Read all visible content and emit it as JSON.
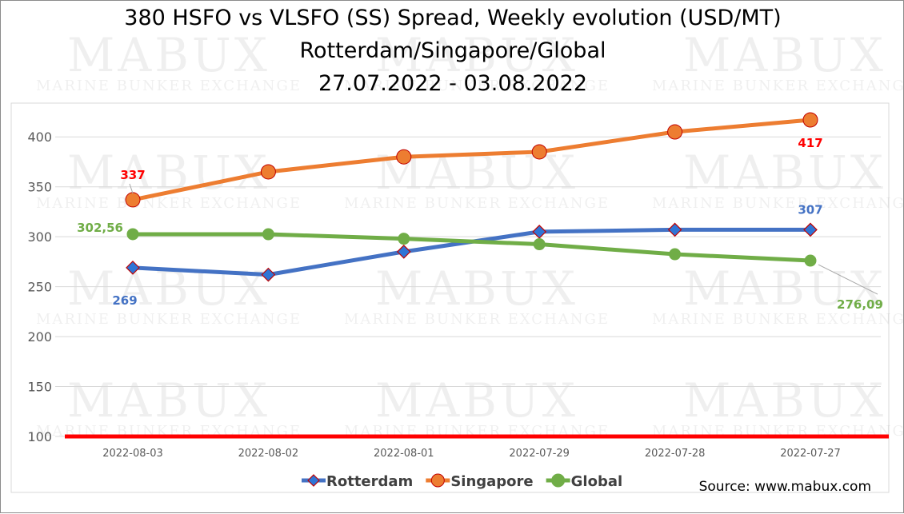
{
  "chart_data": {
    "type": "line",
    "title": [
      "380 HSFO vs VLSFO (SS) Spread, Weekly evolution (USD/MT)",
      "Rotterdam/Singapore/Global",
      "27.07.2022 - 03.08.2022"
    ],
    "categories": [
      "2022-08-03",
      "2022-08-02",
      "2022-08-01",
      "2022-07-29",
      "2022-07-28",
      "2022-07-27"
    ],
    "series": [
      {
        "name": "Rotterdam",
        "values": [
          269,
          262,
          285,
          305,
          307,
          307
        ],
        "color": "#4472c4",
        "marker": "diamond",
        "marker_fill": "#2e75d6",
        "marker_stroke": "#c00000"
      },
      {
        "name": "Singapore",
        "values": [
          337,
          365,
          380,
          385,
          405,
          417
        ],
        "color": "#ed7d31",
        "marker": "circle",
        "marker_fill": "#ed7d31",
        "marker_stroke": "#c00000"
      },
      {
        "name": "Global",
        "values": [
          302.56,
          302.5,
          298,
          292.5,
          282.5,
          276.09
        ],
        "color": "#70ad47",
        "marker": "circle",
        "marker_fill": "#70ad47",
        "marker_stroke": "#70ad47"
      }
    ],
    "data_labels": [
      {
        "series": 1,
        "index": 0,
        "text": "337",
        "color": "#ff0000"
      },
      {
        "series": 1,
        "index": 5,
        "text": "417",
        "color": "#ff0000"
      },
      {
        "series": 0,
        "index": 0,
        "text": "269",
        "color": "#4472c4"
      },
      {
        "series": 0,
        "index": 5,
        "text": "307",
        "color": "#4472c4"
      },
      {
        "series": 2,
        "index": 0,
        "text": "302,56",
        "color": "#70ad47"
      },
      {
        "series": 2,
        "index": 5,
        "text": "276,09",
        "color": "#70ad47"
      }
    ],
    "ylim": [
      100,
      425
    ],
    "yticks": [
      100,
      150,
      200,
      250,
      300,
      350,
      400
    ],
    "reference_line": {
      "value": 100,
      "color": "#ff0000"
    },
    "grid": true,
    "legend": "bottom-center",
    "xlabel": "",
    "ylabel": ""
  },
  "watermark": {
    "brand": "MABUX",
    "tagline": "Marine Bunker Exchange"
  },
  "source": "Source: www.mabux.com"
}
